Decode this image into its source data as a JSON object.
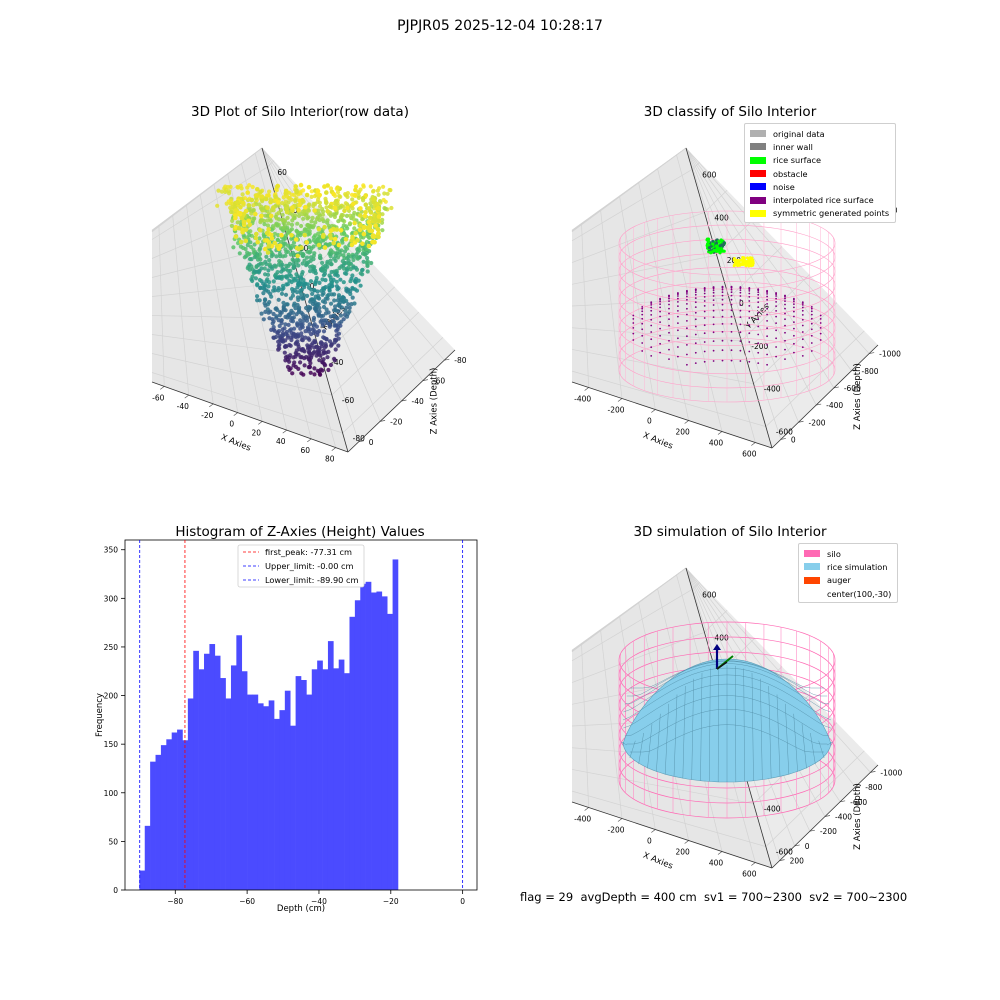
{
  "page": {
    "suptitle": "PJPJR05 2025-12-04 10:28:17",
    "footer": "flag = 29  avgDepth = 400 cm  sv1 = 700~2300  sv2 = 700~2300"
  },
  "chart_data": [
    {
      "type": "scatter",
      "projection": "3d",
      "title": "3D Plot of Silo Interior(row data)",
      "xlabel": "X Axies",
      "ylabel": "Y Axies",
      "zlabel": "Z Axies (Depth)",
      "xticks": [
        "-60",
        "-40",
        "-20",
        "0",
        "20",
        "40",
        "60",
        "80"
      ],
      "yticks": [
        "-80",
        "-60",
        "-40",
        "-20",
        "0",
        "20",
        "40",
        "60"
      ],
      "zticks": [
        "0",
        "-20",
        "-40",
        "-60",
        "-80"
      ],
      "xlim": [
        -75,
        80
      ],
      "ylim": [
        -85,
        65
      ],
      "zlim": [
        -90,
        0
      ],
      "colormap": "viridis",
      "grid": true
    },
    {
      "type": "scatter",
      "projection": "3d",
      "title": "3D classify of Silo Interior",
      "xlabel": "X Axies",
      "ylabel": "Y Axies",
      "zlabel": "Z Axies (Depth)",
      "xticks": [
        "-400",
        "-200",
        "0",
        "200",
        "400",
        "600"
      ],
      "yticks": [
        "-600",
        "-400",
        "-200",
        "0",
        "200",
        "400",
        "600"
      ],
      "zticks": [
        "0",
        "-200",
        "-400",
        "-600",
        "-800",
        "-1000"
      ],
      "zticks_partial": [
        "00"
      ],
      "legend": [
        {
          "label": "original data",
          "color": "#b0b0b0"
        },
        {
          "label": "inner wall",
          "color": "#808080"
        },
        {
          "label": "rice surface",
          "color": "#00ff00"
        },
        {
          "label": "obstacle",
          "color": "#ff0000"
        },
        {
          "label": "noise",
          "color": "#0000ff"
        },
        {
          "label": "interpolated rice surface",
          "color": "#800080"
        },
        {
          "label": "symmetric generated points",
          "color": "#ffff00"
        }
      ],
      "legend_position": "top-right",
      "grid": true
    },
    {
      "type": "bar",
      "title": "Histogram of Z-Axies (Height) Values",
      "xlabel": "Depth (cm)",
      "ylabel": "Frequency",
      "bin_start": -90,
      "bin_width": 1.5,
      "values": [
        20,
        66,
        132,
        139,
        149,
        155,
        162,
        165,
        154,
        197,
        246,
        227,
        243,
        253,
        241,
        218,
        197,
        231,
        262,
        225,
        201,
        201,
        192,
        189,
        195,
        176,
        185,
        205,
        169,
        220,
        216,
        201,
        227,
        236,
        227,
        256,
        228,
        237,
        223,
        281,
        298,
        315,
        317,
        306,
        307,
        302,
        284,
        340
      ],
      "xlim": [
        -94,
        4
      ],
      "ylim": [
        0,
        360
      ],
      "xticks": [
        -80,
        -60,
        -40,
        -20,
        0
      ],
      "xtick_labels": [
        "−80",
        "−60",
        "−40",
        "−20",
        "0"
      ],
      "yticks": [
        0,
        50,
        100,
        150,
        200,
        250,
        300,
        350
      ],
      "bar_color": "#4b4bff",
      "vlines": [
        {
          "label": "first_peak: -77.31 cm",
          "x": -77.31,
          "color": "#ff0000"
        },
        {
          "label": "Upper_limit: -0.00 cm",
          "x": -0.0,
          "color": "#0000ff"
        },
        {
          "label": "Lower_limit: -89.90 cm",
          "x": -89.9,
          "color": "#0000ff"
        }
      ],
      "legend_position": "top-center",
      "grid": false
    },
    {
      "type": "surface",
      "projection": "3d",
      "title": "3D simulation of Silo Interior",
      "xlabel": "X Axies",
      "ylabel": "Y Axies",
      "zlabel": "Z Axies (Depth)",
      "xticks": [
        "-400",
        "-200",
        "0",
        "200",
        "400",
        "600"
      ],
      "yticks": [
        "-600",
        "-400",
        "-200",
        "0",
        "200",
        "400",
        "600"
      ],
      "zticks": [
        "200",
        "0",
        "-200",
        "-400",
        "-600",
        "-800",
        "-1000"
      ],
      "legend": [
        {
          "label": "silo",
          "color": "#ff69b4"
        },
        {
          "label": "rice simulation",
          "color": "#87ceeb"
        },
        {
          "label": "auger",
          "color": "#ff4500"
        },
        {
          "label": "center(100,-30)",
          "color": ""
        }
      ],
      "legend_position": "top-right",
      "grid": true
    }
  ]
}
